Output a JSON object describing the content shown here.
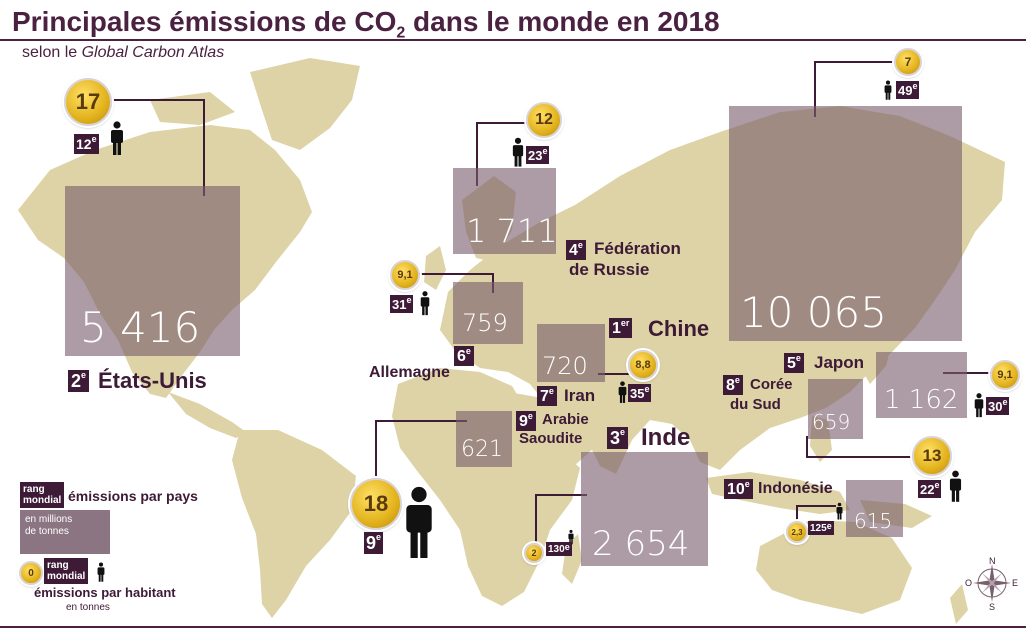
{
  "title": {
    "main": "Principales émissions de CO",
    "sub": "2",
    "rest": " dans le monde en 2018"
  },
  "subtitle": {
    "prefix": "selon le ",
    "source": "Global Carbon Atlas"
  },
  "countries": [
    {
      "key": "china",
      "rank": "1",
      "sup": "er",
      "name": "Chine",
      "emissions": "10 065",
      "per_capita": "7",
      "pc_rank": "49",
      "pc_sup": "e"
    },
    {
      "key": "usa",
      "rank": "2",
      "sup": "e",
      "name": "États-Unis",
      "emissions": "5 416",
      "per_capita": "17",
      "pc_rank": "12",
      "pc_sup": "e"
    },
    {
      "key": "india",
      "rank": "3",
      "sup": "e",
      "name": "Inde",
      "emissions": "2 654",
      "per_capita": "2",
      "pc_rank": "130",
      "pc_sup": "e"
    },
    {
      "key": "russia",
      "rank": "4",
      "sup": "e",
      "name_line1": "Fédération",
      "name_line2": "de Russie",
      "emissions": "1 711",
      "per_capita": "12",
      "pc_rank": "23",
      "pc_sup": "e"
    },
    {
      "key": "japan",
      "rank": "5",
      "sup": "e",
      "name": "Japon",
      "emissions": "1 162",
      "per_capita": "9,1",
      "pc_rank": "30",
      "pc_sup": "e"
    },
    {
      "key": "germany",
      "rank": "6",
      "sup": "e",
      "name": "Allemagne",
      "emissions": "759",
      "per_capita": "9,1",
      "pc_rank": "31",
      "pc_sup": "e"
    },
    {
      "key": "iran",
      "rank": "7",
      "sup": "e",
      "name": "Iran",
      "emissions": "720",
      "per_capita": "8,8",
      "pc_rank": "35",
      "pc_sup": "e"
    },
    {
      "key": "korea",
      "rank": "8",
      "sup": "e",
      "name_line1": "Corée",
      "name_line2": "du Sud",
      "emissions": "659",
      "per_capita": "13",
      "pc_rank": "22",
      "pc_sup": "e"
    },
    {
      "key": "saudi",
      "rank": "9",
      "sup": "e",
      "name_line1": "Arabie",
      "name_line2": "Saoudite",
      "emissions": "621",
      "per_capita": "18",
      "pc_rank": "9",
      "pc_sup": "e"
    },
    {
      "key": "indonesia",
      "rank": "10",
      "sup": "e",
      "name": "Indonésie",
      "emissions": "615",
      "per_capita": "2,3",
      "pc_rank": "125",
      "pc_sup": "e"
    }
  ],
  "legend": {
    "rank_line1": "rang",
    "rank_line2": "mondial",
    "emissions_country": "émissions par pays",
    "unit_line1": "en millions",
    "unit_line2": "de tonnes",
    "coin_value": "0",
    "emissions_capita": "émissions par habitant",
    "unit_capita": "en tonnes"
  },
  "compass": {
    "n": "N",
    "s": "S",
    "e": "E",
    "w": "O"
  },
  "colors": {
    "land": "#ddd3a6",
    "box": "#7a606e",
    "dark": "#3d1a36",
    "coin": "#e2b21c"
  }
}
